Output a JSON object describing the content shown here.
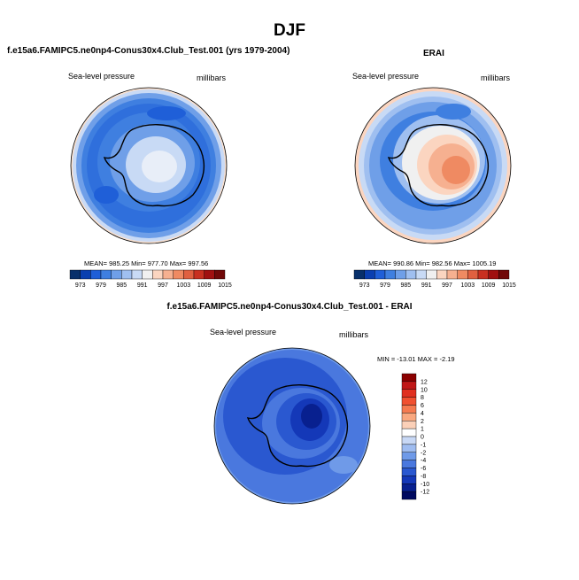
{
  "title": "DJF",
  "panels": {
    "model": {
      "title": "f.e15a6.FAMIPC5.ne0np4-Conus30x4.Club_Test.001 (yrs 1979-2004)",
      "variable": "Sea-level pressure",
      "units": "millibars",
      "stats": "MEAN= 985.25   Min= 977.70   Max= 997.56"
    },
    "obs": {
      "title": "ERAI",
      "variable": "Sea-level pressure",
      "units": "millibars",
      "stats": "MEAN= 990.86   Min= 982.56   Max= 1005.19"
    },
    "diff": {
      "title": "f.e15a6.FAMIPC5.ne0np4-Conus30x4.Club_Test.001 - ERAI",
      "variable": "Sea-level pressure",
      "units": "millibars",
      "stats": "MIN = -13.01  MAX =  -2.19"
    }
  },
  "colorbar_abs": {
    "labels": [
      "973",
      "979",
      "985",
      "991",
      "997",
      "1003",
      "1009",
      "1015"
    ],
    "colors": [
      "#08306b",
      "#0a3fb0",
      "#1f5fd8",
      "#3f7fe0",
      "#6f9fe8",
      "#9fbff0",
      "#c8daf5",
      "#f0f0f0",
      "#fbd5c0",
      "#f6b090",
      "#ef8a62",
      "#e06040",
      "#c83020",
      "#a01010",
      "#700808"
    ]
  },
  "colorbar_diff": {
    "labels": [
      "12",
      "10",
      "8",
      "6",
      "4",
      "2",
      "1",
      "0",
      "-1",
      "-2",
      "-4",
      "-6",
      "-8",
      "-10",
      "-12"
    ],
    "colors": [
      "#8b0000",
      "#c01818",
      "#e03020",
      "#f05030",
      "#f57a50",
      "#f9a880",
      "#fbd0b8",
      "#ffffff",
      "#c8d8f5",
      "#9fbcf0",
      "#6f9ae8",
      "#4a78de",
      "#2a58d0",
      "#1438b8",
      "#08208f",
      "#000a60"
    ]
  }
}
